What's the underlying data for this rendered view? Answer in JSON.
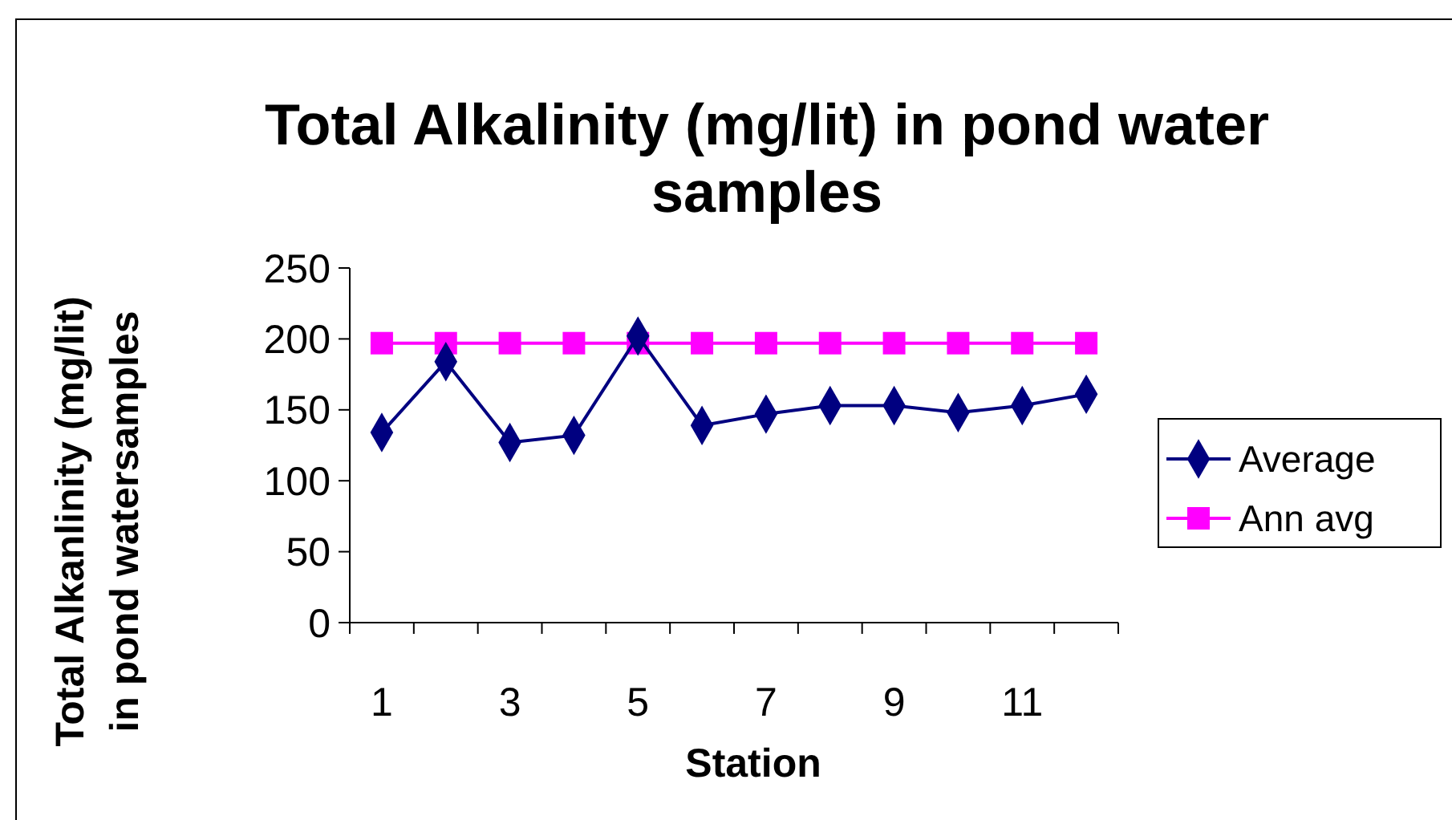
{
  "chart_data": {
    "type": "line",
    "title": "Total Alkalinity (mg/lit) in pond water samples",
    "xlabel": "Station",
    "ylabel": "Total Alkanlinity (mg/lit) in pond watersamples",
    "categories": [
      "1",
      null,
      "3",
      null,
      "5",
      null,
      "7",
      null,
      "9",
      null,
      "11",
      null
    ],
    "series": [
      {
        "name": "Average",
        "color": "#000080",
        "marker": "diamond",
        "values": [
          134,
          184,
          127,
          132,
          202,
          139,
          147,
          153,
          153,
          148,
          153,
          161
        ]
      },
      {
        "name": "Ann avg",
        "color": "#ff00ff",
        "marker": "square",
        "values": [
          197,
          197,
          197,
          197,
          197,
          197,
          197,
          197,
          197,
          197,
          197,
          197
        ]
      }
    ],
    "ylim": [
      0,
      250
    ],
    "yticks": [
      0,
      50,
      100,
      150,
      200,
      250
    ],
    "grid": false,
    "legend": "right"
  }
}
